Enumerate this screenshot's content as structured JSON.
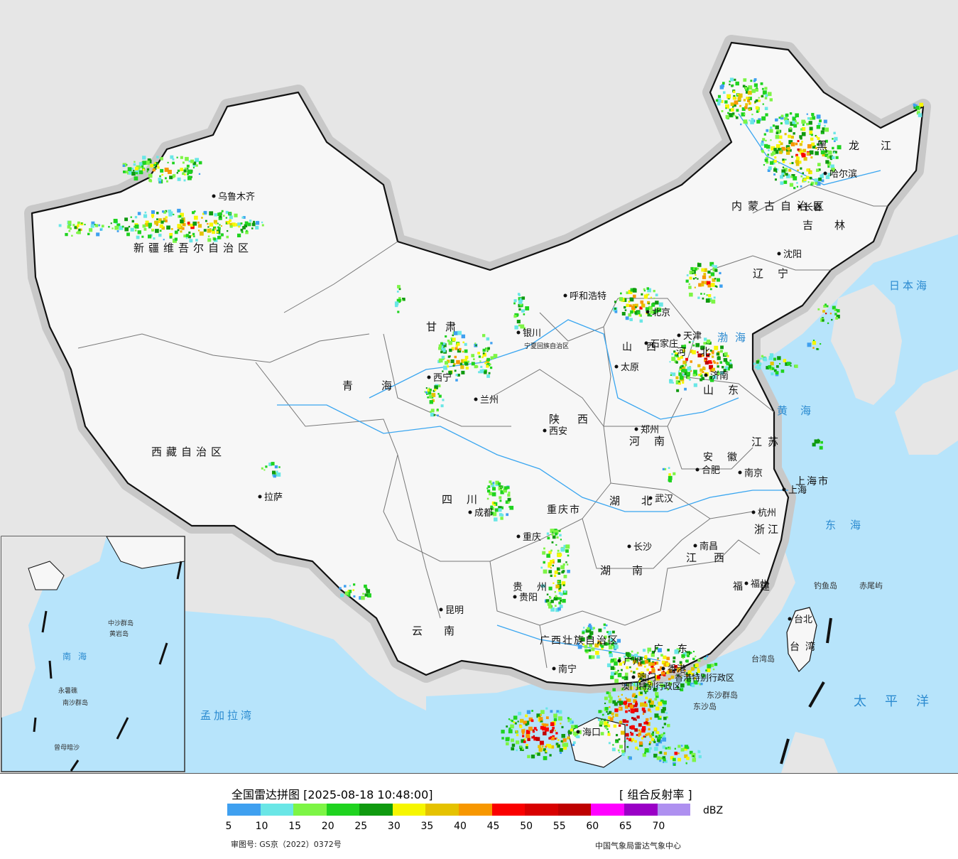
{
  "legend": {
    "title": "全国雷达拼图 [2025-08-18 10:48:00]",
    "product": "[ 组合反射率 ]",
    "unit": "dBZ",
    "approval": "审图号: GS京（2022）0372号",
    "credit": "中国气象局雷达气象中心",
    "scale_colors": [
      "#3fa0f0",
      "#6ae6e6",
      "#7df545",
      "#1fd31f",
      "#0f9a0f",
      "#f6f600",
      "#e5c200",
      "#f79700",
      "#fa0000",
      "#d80000",
      "#be0000",
      "#ff00ff",
      "#9a00c6",
      "#ae90f0"
    ],
    "ticks": [
      "5",
      "10",
      "15",
      "20",
      "25",
      "30",
      "35",
      "40",
      "45",
      "50",
      "55",
      "60",
      "65",
      "70"
    ]
  },
  "map": {
    "regions": [
      {
        "name": "新疆维吾尔自治区"
      },
      {
        "name": "西藏自治区"
      },
      {
        "name": "青海"
      },
      {
        "name": "甘肃"
      },
      {
        "name": "四川"
      },
      {
        "name": "云南"
      },
      {
        "name": "贵州"
      },
      {
        "name": "广西壮族自治区"
      },
      {
        "name": "广东"
      },
      {
        "name": "湖南"
      },
      {
        "name": "湖北"
      },
      {
        "name": "河南"
      },
      {
        "name": "陕西"
      },
      {
        "name": "山西"
      },
      {
        "name": "河北"
      },
      {
        "name": "山东"
      },
      {
        "name": "江苏"
      },
      {
        "name": "安徽"
      },
      {
        "name": "浙江"
      },
      {
        "name": "江西"
      },
      {
        "name": "福建"
      },
      {
        "name": "台湾"
      },
      {
        "name": "辽宁"
      },
      {
        "name": "吉林"
      },
      {
        "name": "黑龙江"
      },
      {
        "name": "内蒙古自治区"
      },
      {
        "name": "重庆市"
      },
      {
        "name": "上海市"
      },
      {
        "name": "宁夏回族自治区"
      },
      {
        "name": "香港特别行政区"
      },
      {
        "name": "澳门特别行政区"
      }
    ],
    "cities": [
      {
        "name": "乌鲁木齐"
      },
      {
        "name": "拉萨"
      },
      {
        "name": "西宁"
      },
      {
        "name": "兰州"
      },
      {
        "name": "银川"
      },
      {
        "name": "呼和浩特"
      },
      {
        "name": "北京"
      },
      {
        "name": "天津"
      },
      {
        "name": "石家庄"
      },
      {
        "name": "太原"
      },
      {
        "name": "济南"
      },
      {
        "name": "郑州"
      },
      {
        "name": "西安"
      },
      {
        "name": "成都"
      },
      {
        "name": "重庆"
      },
      {
        "name": "贵阳"
      },
      {
        "name": "昆明"
      },
      {
        "name": "南宁"
      },
      {
        "name": "广州"
      },
      {
        "name": "海口"
      },
      {
        "name": "长沙"
      },
      {
        "name": "武汉"
      },
      {
        "name": "南昌"
      },
      {
        "name": "合肥"
      },
      {
        "name": "南京"
      },
      {
        "name": "上海"
      },
      {
        "name": "杭州"
      },
      {
        "name": "福州"
      },
      {
        "name": "台北"
      },
      {
        "name": "沈阳"
      },
      {
        "name": "长春"
      },
      {
        "name": "哈尔滨"
      },
      {
        "name": "香港"
      },
      {
        "name": "澳门"
      }
    ],
    "seas": [
      {
        "name": "日本海"
      },
      {
        "name": "渤海"
      },
      {
        "name": "黄海"
      },
      {
        "name": "东海"
      },
      {
        "name": "太平洋"
      },
      {
        "name": "孟加拉湾"
      },
      {
        "name": "南海"
      }
    ],
    "islands": [
      {
        "name": "钓鱼岛"
      },
      {
        "name": "赤尾屿"
      },
      {
        "name": "台湾岛"
      },
      {
        "name": "东沙群岛"
      },
      {
        "name": "东沙岛"
      },
      {
        "name": "中沙群岛"
      },
      {
        "name": "黄岩岛"
      },
      {
        "name": "永暑礁"
      },
      {
        "name": "南沙群岛"
      },
      {
        "name": "曾母暗沙"
      }
    ]
  }
}
